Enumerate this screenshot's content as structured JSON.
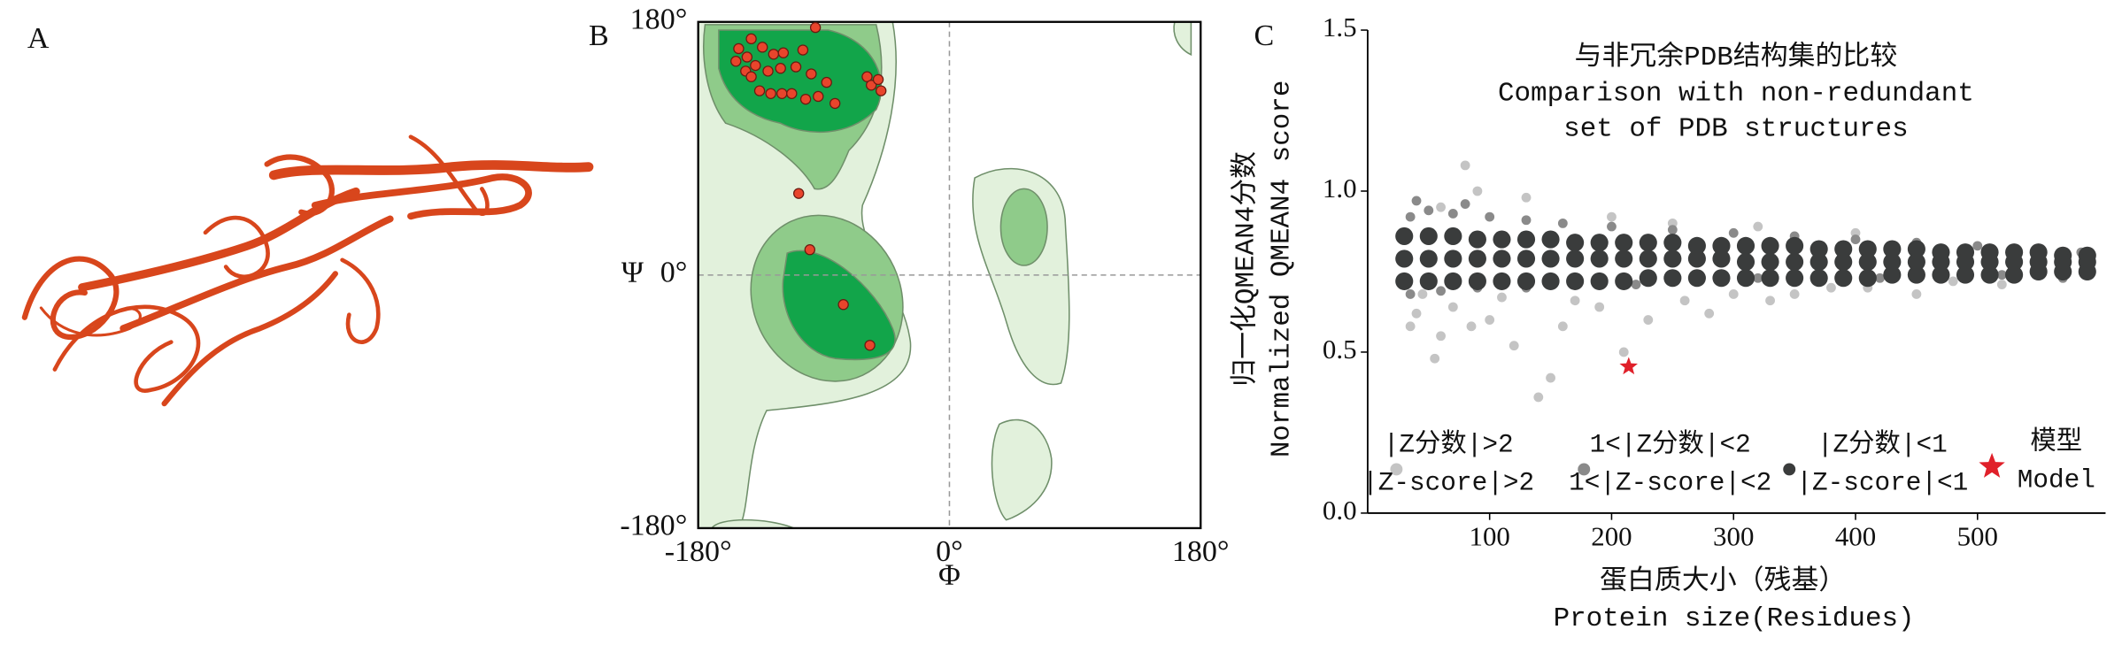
{
  "panel_a": {
    "panel_label": "A"
  },
  "chart_data": [
    {
      "type": "scatter",
      "panel_label": "B",
      "xlabel": "Φ",
      "ylabel": "Ψ",
      "xlim": [
        -180,
        180
      ],
      "ylim": [
        -180,
        180
      ],
      "xticks": [
        {
          "value": -180,
          "label": "-180°"
        },
        {
          "value": 0,
          "label": "0°"
        },
        {
          "value": 180,
          "label": "180°"
        }
      ],
      "yticks": [
        {
          "value": -180,
          "label": "-180°"
        },
        {
          "value": 0,
          "label": "0°"
        },
        {
          "value": 180,
          "label": "180°"
        }
      ],
      "zero_lines": true,
      "frame": true,
      "legend": false,
      "series": [
        {
          "color": "#e8452c",
          "x": [
            -96,
            -142,
            -151,
            -134,
            -145,
            -153,
            -139,
            -126,
            -119,
            -105,
            -146,
            -142,
            -130,
            -121,
            -110,
            -99,
            -88,
            -136,
            -128,
            -120,
            -113,
            -103,
            -94,
            -82,
            -59,
            -56,
            -51,
            -49,
            -108,
            -100,
            -76,
            -57
          ],
          "values": [
            176,
            168,
            161,
            162,
            155,
            152,
            149,
            157,
            158,
            160,
            145,
            141,
            145,
            147,
            148,
            143,
            137,
            131,
            129,
            129,
            129,
            125,
            127,
            122,
            141,
            135,
            139,
            131,
            58,
            18,
            -21,
            -50
          ]
        }
      ]
    },
    {
      "type": "scatter",
      "panel_label": "C",
      "title": [
        "与非冗余PDB结构集的比较",
        "Comparison with non-redundant",
        "set of PDB structures"
      ],
      "xlabel": [
        "蛋白质大小（残基）",
        "Protein size(Residues)"
      ],
      "ylabel": [
        "归一化QMEAN4分数",
        "Normalized QMEAN4 score"
      ],
      "xlim": [
        0,
        605
      ],
      "ylim": [
        0,
        1.5
      ],
      "xticks": [
        100,
        200,
        300,
        400,
        500
      ],
      "yticks": [
        {
          "value": 0,
          "label": "0.0"
        },
        {
          "value": 0.5,
          "label": "0.5"
        },
        {
          "value": 1,
          "label": "1.0"
        },
        {
          "value": 1.5,
          "label": "1.5"
        }
      ],
      "zero_lines": false,
      "frame": false,
      "legend": true,
      "series": [
        {
          "name": "|Z分数|>2",
          "name_en": "|Z-score|>2",
          "color": "#c4c4c4",
          "x": [
            40,
            60,
            80,
            100,
            120,
            150,
            160,
            190,
            210,
            230,
            260,
            280,
            300,
            330,
            350,
            380,
            410,
            450,
            480,
            520,
            60,
            90,
            130,
            200,
            250,
            45,
            70,
            110,
            170,
            140,
            35,
            55,
            85,
            320,
            400
          ],
          "values": [
            0.62,
            0.55,
            1.08,
            0.6,
            0.52,
            0.42,
            0.58,
            0.64,
            0.5,
            0.6,
            0.66,
            0.62,
            0.68,
            0.66,
            0.68,
            0.7,
            0.7,
            0.68,
            0.72,
            0.71,
            0.95,
            1.0,
            0.98,
            0.92,
            0.9,
            0.68,
            0.64,
            0.67,
            0.66,
            0.36,
            0.58,
            0.48,
            0.58,
            0.89,
            0.87
          ]
        },
        {
          "name": "1<|Z分数|<2",
          "name_en": "1<|Z-score|<2",
          "color": "#8a8a8a",
          "x": [
            35,
            50,
            70,
            100,
            130,
            160,
            200,
            250,
            300,
            350,
            400,
            450,
            500,
            550,
            585,
            35,
            60,
            90,
            130,
            170,
            220,
            270,
            320,
            370,
            420,
            470,
            520,
            570,
            40,
            80
          ],
          "values": [
            0.92,
            0.94,
            0.93,
            0.92,
            0.91,
            0.9,
            0.89,
            0.88,
            0.87,
            0.86,
            0.85,
            0.84,
            0.83,
            0.82,
            0.81,
            0.68,
            0.69,
            0.7,
            0.7,
            0.71,
            0.71,
            0.72,
            0.73,
            0.73,
            0.73,
            0.74,
            0.74,
            0.73,
            0.97,
            0.96
          ]
        },
        {
          "name": "|Z分数|<1",
          "name_en": "|Z-score|<1",
          "color": "#3a3c3c",
          "x": [
            30,
            50,
            70,
            90,
            110,
            130,
            150,
            170,
            190,
            210,
            230,
            250,
            270,
            290,
            310,
            330,
            350,
            370,
            390,
            410,
            430,
            450,
            470,
            490,
            510,
            530,
            550,
            570,
            590,
            30,
            50,
            70,
            90,
            110,
            130,
            150,
            170,
            190,
            210,
            230,
            250,
            270,
            290,
            310,
            330,
            350,
            370,
            390,
            410,
            430,
            450,
            470,
            490,
            510,
            530,
            550,
            570,
            590,
            30,
            50,
            70,
            90,
            110,
            130,
            150,
            170,
            190,
            210,
            230,
            250,
            270,
            290,
            310,
            330,
            350,
            370,
            390,
            410,
            430,
            450,
            470,
            490,
            510,
            530,
            550,
            570,
            590
          ],
          "values": [
            0.86,
            0.86,
            0.86,
            0.85,
            0.85,
            0.85,
            0.85,
            0.84,
            0.84,
            0.84,
            0.84,
            0.84,
            0.83,
            0.83,
            0.83,
            0.83,
            0.83,
            0.82,
            0.82,
            0.82,
            0.82,
            0.82,
            0.81,
            0.81,
            0.81,
            0.81,
            0.81,
            0.8,
            0.8,
            0.79,
            0.79,
            0.79,
            0.79,
            0.79,
            0.79,
            0.79,
            0.79,
            0.79,
            0.79,
            0.79,
            0.79,
            0.79,
            0.79,
            0.78,
            0.78,
            0.78,
            0.78,
            0.78,
            0.78,
            0.78,
            0.78,
            0.78,
            0.78,
            0.78,
            0.78,
            0.78,
            0.78,
            0.78,
            0.72,
            0.72,
            0.72,
            0.72,
            0.72,
            0.72,
            0.72,
            0.72,
            0.72,
            0.72,
            0.73,
            0.73,
            0.73,
            0.73,
            0.73,
            0.73,
            0.73,
            0.73,
            0.73,
            0.73,
            0.74,
            0.74,
            0.74,
            0.74,
            0.74,
            0.74,
            0.75,
            0.75,
            0.75
          ]
        },
        {
          "name": "模型",
          "name_en": "Model",
          "color": "#e0202a",
          "marker": "star",
          "x": [
            214
          ],
          "values": [
            0.455
          ]
        }
      ]
    }
  ]
}
